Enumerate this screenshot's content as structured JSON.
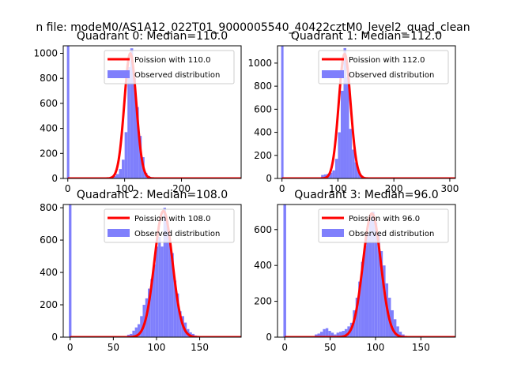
{
  "figure": {
    "suptitle": "n file: modeM0/AS1A12_022T01_9000005540_40422cztM0_level2_quad_clean"
  },
  "colors": {
    "poisson": "#ff0000",
    "observed": "#7f7ffc",
    "axes": "#000000"
  },
  "chart_data": [
    {
      "type": "bar",
      "title": "Quadrant 0: Median=110.0",
      "xlim": [
        -8,
        305
      ],
      "ylim": [
        0,
        1060
      ],
      "xticks": [
        0,
        100,
        200
      ],
      "yticks": [
        0,
        200,
        400,
        600,
        800,
        1000
      ],
      "legend": {
        "placement": "top-right",
        "entries": [
          "Poission with 110.0",
          "Observed distribution"
        ]
      },
      "median": 110.0,
      "poisson_peak": 1000,
      "spike": {
        "x": 0,
        "height": 1060
      },
      "hist_bin_width": 5,
      "observed_x": [
        70,
        75,
        80,
        85,
        90,
        95,
        100,
        105,
        110,
        115,
        120,
        125,
        130,
        135,
        140,
        145,
        150
      ],
      "observed_counts": [
        5,
        15,
        20,
        35,
        75,
        150,
        370,
        890,
        1040,
        800,
        570,
        340,
        170,
        45,
        20,
        10,
        5
      ],
      "series": [
        {
          "name": "Poission with 110.0",
          "kind": "line"
        },
        {
          "name": "Observed distribution",
          "kind": "bar"
        }
      ]
    },
    {
      "type": "bar",
      "title": "Quadrant 1: Median=112.0",
      "xlim": [
        -8,
        310
      ],
      "ylim": [
        0,
        1150
      ],
      "xticks": [
        0,
        100,
        200,
        300
      ],
      "yticks": [
        0,
        200,
        400,
        600,
        800,
        1000
      ],
      "legend": {
        "placement": "top-right",
        "entries": [
          "Poission with 112.0",
          "Observed distribution"
        ]
      },
      "median": 112.0,
      "poisson_peak": 1080,
      "spike": {
        "x": 0,
        "height": 1150
      },
      "hist_bin_width": 5,
      "observed_x": [
        65,
        70,
        75,
        80,
        85,
        90,
        95,
        100,
        105,
        110,
        115,
        120,
        125,
        130,
        135,
        140,
        145,
        150
      ],
      "observed_counts": [
        10,
        30,
        35,
        40,
        50,
        70,
        170,
        400,
        760,
        1130,
        880,
        430,
        250,
        140,
        60,
        25,
        10,
        5
      ],
      "series": [
        {
          "name": "Poission with 112.0",
          "kind": "line"
        },
        {
          "name": "Observed distribution",
          "kind": "bar"
        }
      ]
    },
    {
      "type": "bar",
      "title": "Quadrant 2: Median=108.0",
      "xlim": [
        -8,
        198
      ],
      "ylim": [
        0,
        820
      ],
      "xticks": [
        0,
        50,
        100,
        150
      ],
      "yticks": [
        0,
        200,
        400,
        600,
        800
      ],
      "legend": {
        "placement": "top-right",
        "entries": [
          "Poission with 108.0",
          "Observed distribution"
        ]
      },
      "median": 108.0,
      "poisson_peak": 780,
      "spike": {
        "x": 0,
        "height": 820
      },
      "hist_bin_width": 3,
      "observed_x": [
        63,
        66,
        69,
        72,
        75,
        78,
        81,
        84,
        87,
        90,
        93,
        96,
        99,
        102,
        105,
        108,
        111,
        114,
        117,
        120,
        123,
        126,
        129,
        132,
        135,
        138,
        141,
        144
      ],
      "observed_counts": [
        5,
        15,
        20,
        40,
        60,
        80,
        130,
        200,
        240,
        300,
        360,
        450,
        560,
        620,
        560,
        800,
        720,
        600,
        520,
        350,
        270,
        160,
        130,
        90,
        50,
        30,
        20,
        10
      ],
      "series": [
        {
          "name": "Poission with 108.0",
          "kind": "line"
        },
        {
          "name": "Observed distribution",
          "kind": "bar"
        }
      ]
    },
    {
      "type": "bar",
      "title": "Quadrant 3: Median=96.0",
      "xlim": [
        -8,
        188
      ],
      "ylim": [
        0,
        740
      ],
      "xticks": [
        0,
        50,
        100,
        150
      ],
      "yticks": [
        0,
        200,
        400,
        600
      ],
      "legend": {
        "placement": "top-right",
        "entries": [
          "Poission with 96.0",
          "Observed distribution"
        ]
      },
      "median": 96.0,
      "poisson_peak": 690,
      "spike": {
        "x": 0,
        "height": 740
      },
      "hist_bin_width": 3,
      "observed_x": [
        30,
        33,
        36,
        39,
        42,
        45,
        48,
        51,
        54,
        57,
        60,
        63,
        66,
        69,
        72,
        75,
        78,
        81,
        84,
        87,
        90,
        93,
        96,
        99,
        102,
        105,
        108,
        111,
        114,
        117,
        120,
        123,
        126,
        129,
        132
      ],
      "observed_counts": [
        5,
        15,
        20,
        30,
        45,
        50,
        35,
        25,
        15,
        25,
        30,
        35,
        45,
        60,
        80,
        150,
        220,
        310,
        420,
        510,
        580,
        650,
        700,
        640,
        580,
        480,
        400,
        300,
        220,
        150,
        100,
        60,
        30,
        15,
        5
      ],
      "series": [
        {
          "name": "Poission with 96.0",
          "kind": "line"
        },
        {
          "name": "Observed distribution",
          "kind": "bar"
        }
      ]
    }
  ]
}
